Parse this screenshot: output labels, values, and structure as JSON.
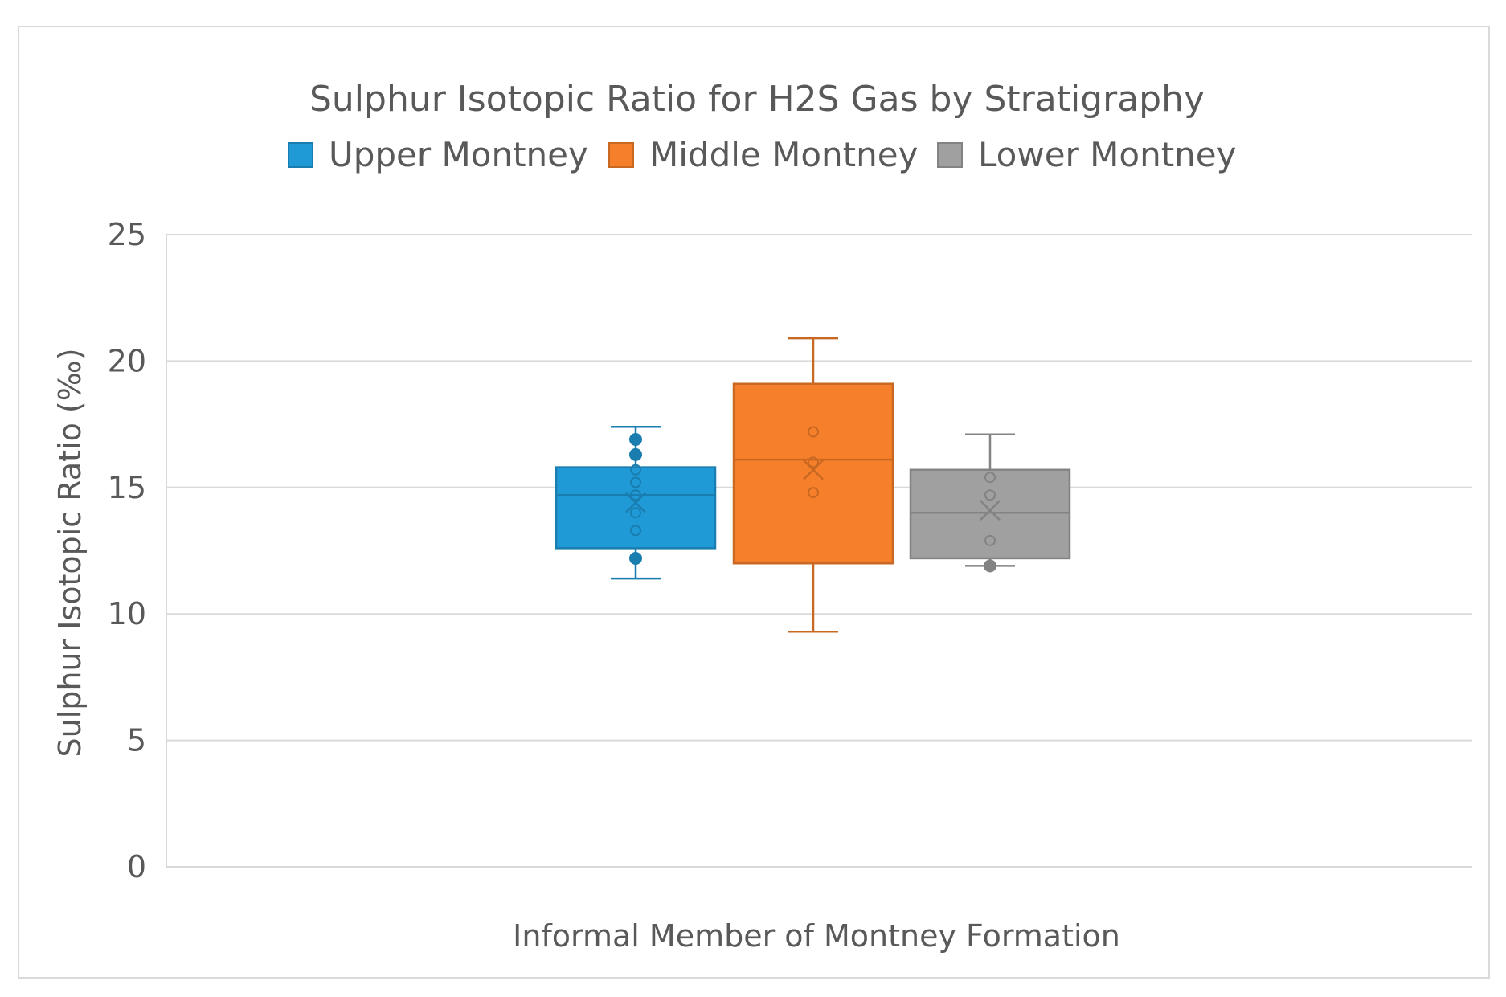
{
  "chart_data": {
    "type": "box",
    "title": "Sulphur Isotopic Ratio for H2S Gas by Stratigraphy",
    "xlabel": "Informal Member of Montney Formation",
    "ylabel": "Sulphur Isotopic Ratio (‰)",
    "ylim": [
      0,
      25
    ],
    "yticks": [
      0,
      5,
      10,
      15,
      20,
      25
    ],
    "ytick_labels": [
      "0",
      "5",
      "10",
      "15",
      "20",
      "25"
    ],
    "grid": true,
    "legend_position": "top",
    "series": [
      {
        "name": "Upper Montney",
        "color": "#1f9ad6",
        "min": 11.4,
        "q1": 12.6,
        "median": 14.7,
        "mean": 14.4,
        "q3": 15.8,
        "max": 17.4,
        "points": [
          12.2,
          13.3,
          14.0,
          14.7,
          15.2,
          15.7,
          16.3,
          16.9
        ]
      },
      {
        "name": "Middle Montney",
        "color": "#f57f2a",
        "min": 9.3,
        "q1": 12.0,
        "median": 16.1,
        "mean": 15.7,
        "q3": 19.1,
        "max": 20.9,
        "points": [
          14.8,
          16.0,
          17.2
        ]
      },
      {
        "name": "Lower Montney",
        "color": "#a0a0a0",
        "min": 11.9,
        "q1": 12.2,
        "median": 14.0,
        "mean": 14.1,
        "q3": 15.7,
        "max": 17.1,
        "points": [
          11.9,
          12.9,
          14.7,
          15.4
        ]
      }
    ]
  }
}
